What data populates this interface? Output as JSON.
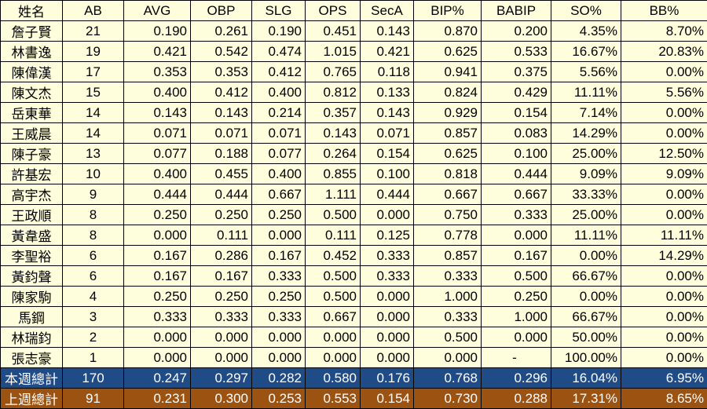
{
  "headers": [
    "姓名",
    "AB",
    "AVG",
    "OBP",
    "SLG",
    "OPS",
    "SecA",
    "BIP%",
    "BABIP",
    "SO%",
    "BB%"
  ],
  "rows": [
    [
      "詹子賢",
      "21",
      "0.190",
      "0.261",
      "0.190",
      "0.451",
      "0.143",
      "0.870",
      "0.200",
      "4.35%",
      "8.70%"
    ],
    [
      "林書逸",
      "19",
      "0.421",
      "0.542",
      "0.474",
      "1.015",
      "0.421",
      "0.625",
      "0.533",
      "16.67%",
      "20.83%"
    ],
    [
      "陳偉漢",
      "17",
      "0.353",
      "0.353",
      "0.412",
      "0.765",
      "0.118",
      "0.941",
      "0.375",
      "5.56%",
      "0.00%"
    ],
    [
      "陳文杰",
      "15",
      "0.400",
      "0.412",
      "0.400",
      "0.812",
      "0.133",
      "0.824",
      "0.429",
      "11.11%",
      "5.56%"
    ],
    [
      "岳東華",
      "14",
      "0.143",
      "0.143",
      "0.214",
      "0.357",
      "0.143",
      "0.929",
      "0.154",
      "7.14%",
      "0.00%"
    ],
    [
      "王威晨",
      "14",
      "0.071",
      "0.071",
      "0.071",
      "0.143",
      "0.071",
      "0.857",
      "0.083",
      "14.29%",
      "0.00%"
    ],
    [
      "陳子豪",
      "13",
      "0.077",
      "0.188",
      "0.077",
      "0.264",
      "0.154",
      "0.625",
      "0.100",
      "25.00%",
      "12.50%"
    ],
    [
      "許基宏",
      "10",
      "0.400",
      "0.455",
      "0.400",
      "0.855",
      "0.100",
      "0.818",
      "0.444",
      "9.09%",
      "9.09%"
    ],
    [
      "高宇杰",
      "9",
      "0.444",
      "0.444",
      "0.667",
      "1.111",
      "0.444",
      "0.667",
      "0.667",
      "33.33%",
      "0.00%"
    ],
    [
      "王政順",
      "8",
      "0.250",
      "0.250",
      "0.250",
      "0.500",
      "0.000",
      "0.750",
      "0.333",
      "25.00%",
      "0.00%"
    ],
    [
      "黃韋盛",
      "8",
      "0.000",
      "0.111",
      "0.000",
      "0.111",
      "0.125",
      "0.778",
      "0.000",
      "11.11%",
      "11.11%"
    ],
    [
      "李聖裕",
      "6",
      "0.167",
      "0.286",
      "0.167",
      "0.452",
      "0.333",
      "0.857",
      "0.167",
      "0.00%",
      "14.29%"
    ],
    [
      "黃鈞聲",
      "6",
      "0.167",
      "0.167",
      "0.333",
      "0.500",
      "0.333",
      "0.333",
      "0.500",
      "66.67%",
      "0.00%"
    ],
    [
      "陳家駒",
      "4",
      "0.250",
      "0.250",
      "0.250",
      "0.500",
      "0.000",
      "1.000",
      "0.250",
      "0.00%",
      "0.00%"
    ],
    [
      "馬鋼",
      "3",
      "0.333",
      "0.333",
      "0.333",
      "0.667",
      "0.000",
      "0.333",
      "1.000",
      "66.67%",
      "0.00%"
    ],
    [
      "林瑞鈞",
      "2",
      "0.000",
      "0.000",
      "0.000",
      "0.000",
      "0.000",
      "0.500",
      "0.000",
      "50.00%",
      "0.00%"
    ],
    [
      "張志豪",
      "1",
      "0.000",
      "0.000",
      "0.000",
      "0.000",
      "0.000",
      "0.000",
      "-",
      "100.00%",
      "0.00%"
    ]
  ],
  "this_week_total": [
    "本週總計",
    "170",
    "0.247",
    "0.297",
    "0.282",
    "0.580",
    "0.176",
    "0.768",
    "0.296",
    "16.04%",
    "6.95%"
  ],
  "last_week_total": [
    "上週總計",
    "91",
    "0.231",
    "0.300",
    "0.253",
    "0.553",
    "0.154",
    "0.730",
    "0.288",
    "17.31%",
    "8.65%"
  ],
  "colors": {
    "cell_background": "#fefedd",
    "this_week_total_background": "#1f4b86",
    "last_week_total_background": "#9c5210",
    "total_text": "#ffffff",
    "border": "#000000"
  }
}
